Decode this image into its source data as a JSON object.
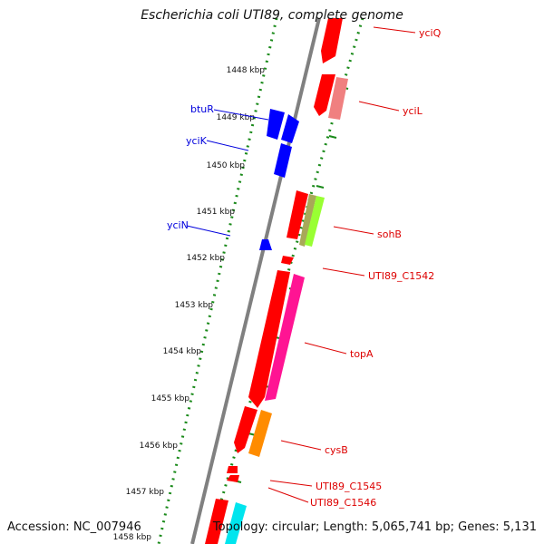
{
  "title": "Escherichia coli UTI89, complete genome",
  "footer": {
    "accession": "Accession: NC_007946",
    "summary": "Topology: circular; Length: 5,065,741 bp; Genes: 5,131"
  },
  "ticks": [
    "1448 kbp",
    "1449 kbp",
    "1450 kbp",
    "1451 kbp",
    "1452 kbp",
    "1453 kbp",
    "1454 kbp",
    "1455 kbp",
    "1456 kbp",
    "1457 kbp",
    "1458 kbp"
  ],
  "genes": [
    {
      "label": "yciQ",
      "color": "#ff0000"
    },
    {
      "label": "yciL",
      "color": "#ff0000"
    },
    {
      "label": "btuR",
      "color": "#0000ff"
    },
    {
      "label": "yciK",
      "color": "#0000ff"
    },
    {
      "label": "yciN",
      "color": "#0000ff"
    },
    {
      "label": "sohB",
      "color": "#ff0000"
    },
    {
      "label": "UTI89_C1542",
      "color": "#ff0000"
    },
    {
      "label": "topA",
      "color": "#ff0000"
    },
    {
      "label": "cysB",
      "color": "#ff0000"
    },
    {
      "label": "UTI89_C1545",
      "color": "#ff0000"
    },
    {
      "label": "UTI89_C1546",
      "color": "#ff0000"
    }
  ],
  "colors": {
    "forward_label": "#dd0000",
    "reverse_label": "#0000dd",
    "backbone": "#808080",
    "tick_green": "#1a8a1a"
  }
}
